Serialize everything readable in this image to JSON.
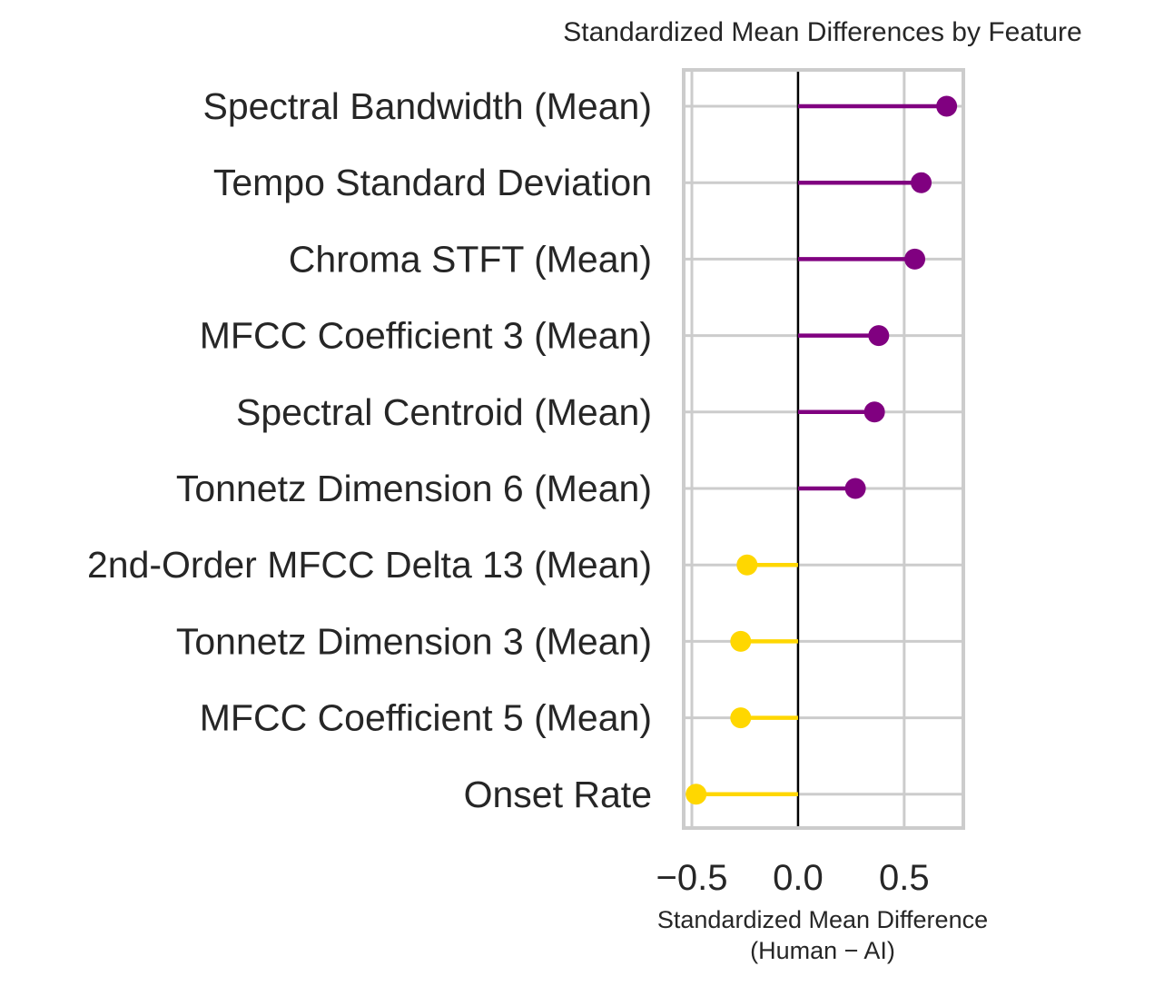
{
  "chart_data": {
    "type": "lollipop",
    "orientation": "horizontal",
    "title": "Standardized Mean Differences by Feature",
    "xlabel_line1": "Standardized Mean Difference",
    "xlabel_line2": "(Human − AI)",
    "ylabel": "",
    "xlim": [
      -0.53,
      0.77
    ],
    "xticks": [
      -0.5,
      0.0,
      0.5
    ],
    "xtick_labels": [
      "−0.5",
      "0.0",
      "0.5"
    ],
    "zero_line": true,
    "grid": true,
    "categories": [
      "Spectral Bandwidth (Mean)",
      "Tempo Standard Deviation",
      "Chroma STFT (Mean)",
      "MFCC Coefficient 3 (Mean)",
      "Spectral Centroid (Mean)",
      "Tonnetz Dimension 6 (Mean)",
      "2nd-Order MFCC Delta 13 (Mean)",
      "Tonnetz Dimension 3 (Mean)",
      "MFCC Coefficient 5 (Mean)",
      "Onset Rate"
    ],
    "values": [
      0.7,
      0.58,
      0.55,
      0.38,
      0.36,
      0.27,
      -0.24,
      -0.27,
      -0.27,
      -0.48
    ],
    "colors": {
      "positive": "#800080",
      "negative": "#FFD700",
      "zero_line": "#000000",
      "grid": "#cccccc",
      "spine": "#cccccc",
      "text": "#262626"
    }
  }
}
